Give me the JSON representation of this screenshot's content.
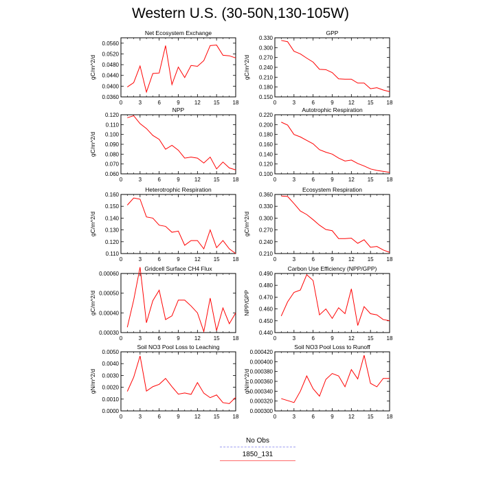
{
  "title": "Western U.S. (30-50N,130-105W)",
  "legend": {
    "items": [
      {
        "label": "No Obs",
        "color": "#9b9bf0",
        "style": "dashed"
      },
      {
        "label": "1850_131",
        "color": "#ff6a6a",
        "style": "solid"
      }
    ]
  },
  "chart_data": [
    {
      "type": "line",
      "title": "Net Ecosystem Exchange",
      "ylabel": "gC/m^2/d",
      "xlim": [
        0,
        18
      ],
      "ylim": [
        0.036,
        0.058
      ],
      "xticks": [
        0,
        3,
        6,
        9,
        12,
        15,
        18
      ],
      "yticks": [
        0.036,
        0.04,
        0.044,
        0.048,
        0.052,
        0.056
      ],
      "ytick_labels": [
        "0.0360",
        "0.0400",
        "0.0440",
        "0.0480",
        "0.0520",
        "0.0560"
      ],
      "series": [
        {
          "color": "#ff0000",
          "x": [
            1,
            2,
            3,
            4,
            5,
            6,
            7,
            8,
            9,
            10,
            11,
            12,
            13,
            14,
            15,
            16,
            17,
            18
          ],
          "y": [
            0.0397,
            0.0413,
            0.0475,
            0.0378,
            0.0447,
            0.0449,
            0.0551,
            0.0406,
            0.0471,
            0.0432,
            0.0477,
            0.0474,
            0.0495,
            0.0551,
            0.0553,
            0.0515,
            0.0513,
            0.0505
          ]
        }
      ]
    },
    {
      "type": "line",
      "title": "GPP",
      "ylabel": "gC/m^2/d",
      "xlim": [
        0,
        18
      ],
      "ylim": [
        0.15,
        0.33
      ],
      "xticks": [
        0,
        3,
        6,
        9,
        12,
        15,
        18
      ],
      "yticks": [
        0.15,
        0.18,
        0.21,
        0.24,
        0.27,
        0.3,
        0.33
      ],
      "ytick_labels": [
        "0.150",
        "0.180",
        "0.210",
        "0.240",
        "0.270",
        "0.300",
        "0.330"
      ],
      "series": [
        {
          "color": "#ff0000",
          "x": [
            1,
            2,
            3,
            4,
            5,
            6,
            7,
            8,
            9,
            10,
            11,
            12,
            13,
            14,
            15,
            16,
            17,
            18
          ],
          "y": [
            0.322,
            0.318,
            0.289,
            0.281,
            0.268,
            0.256,
            0.234,
            0.233,
            0.224,
            0.205,
            0.204,
            0.204,
            0.192,
            0.192,
            0.175,
            0.178,
            0.171,
            0.166
          ]
        }
      ]
    },
    {
      "type": "line",
      "title": "NPP",
      "ylabel": "gC/m^2/d",
      "xlim": [
        0,
        18
      ],
      "ylim": [
        0.06,
        0.12
      ],
      "xticks": [
        0,
        3,
        6,
        9,
        12,
        15,
        18
      ],
      "yticks": [
        0.06,
        0.07,
        0.08,
        0.09,
        0.1,
        0.11,
        0.12
      ],
      "ytick_labels": [
        "0.060",
        "0.070",
        "0.080",
        "0.090",
        "0.100",
        "0.110",
        "0.120"
      ],
      "series": [
        {
          "color": "#ff0000",
          "x": [
            1,
            2,
            3,
            4,
            5,
            6,
            7,
            8,
            9,
            10,
            11,
            12,
            13,
            14,
            15,
            16,
            17,
            18
          ],
          "y": [
            0.117,
            0.119,
            0.111,
            0.106,
            0.099,
            0.095,
            0.085,
            0.089,
            0.084,
            0.076,
            0.077,
            0.076,
            0.071,
            0.077,
            0.065,
            0.072,
            0.066,
            0.064
          ]
        }
      ]
    },
    {
      "type": "line",
      "title": "Autotrophic Respiration",
      "ylabel": "",
      "xlim": [
        0,
        18
      ],
      "ylim": [
        0.1,
        0.22
      ],
      "xticks": [
        0,
        3,
        6,
        9,
        12,
        15,
        18
      ],
      "yticks": [
        0.1,
        0.12,
        0.14,
        0.16,
        0.18,
        0.2,
        0.22
      ],
      "ytick_labels": [
        "0.100",
        "0.120",
        "0.140",
        "0.160",
        "0.180",
        "0.200",
        "0.220"
      ],
      "series": [
        {
          "color": "#ff0000",
          "x": [
            1,
            2,
            3,
            4,
            5,
            6,
            7,
            8,
            9,
            10,
            11,
            12,
            13,
            14,
            15,
            16,
            17,
            18
          ],
          "y": [
            0.205,
            0.199,
            0.18,
            0.175,
            0.168,
            0.161,
            0.149,
            0.144,
            0.14,
            0.132,
            0.126,
            0.128,
            0.121,
            0.116,
            0.11,
            0.107,
            0.105,
            0.103
          ]
        }
      ]
    },
    {
      "type": "line",
      "title": "Heterotrophic Respiration",
      "ylabel": "gC/m^2/d",
      "xlim": [
        0,
        18
      ],
      "ylim": [
        0.11,
        0.16
      ],
      "xticks": [
        0,
        3,
        6,
        9,
        12,
        15,
        18
      ],
      "yticks": [
        0.11,
        0.12,
        0.13,
        0.14,
        0.15,
        0.16
      ],
      "ytick_labels": [
        "0.110",
        "0.120",
        "0.130",
        "0.140",
        "0.150",
        "0.160"
      ],
      "series": [
        {
          "color": "#ff0000",
          "x": [
            1,
            2,
            3,
            4,
            5,
            6,
            7,
            8,
            9,
            10,
            11,
            12,
            13,
            14,
            15,
            16,
            17,
            18
          ],
          "y": [
            0.151,
            0.157,
            0.156,
            0.141,
            0.14,
            0.134,
            0.133,
            0.128,
            0.129,
            0.117,
            0.121,
            0.121,
            0.114,
            0.13,
            0.115,
            0.121,
            0.114,
            0.11
          ]
        }
      ]
    },
    {
      "type": "line",
      "title": "Ecosystem Respiration",
      "ylabel": "gC/m^2/d",
      "xlim": [
        0,
        18
      ],
      "ylim": [
        0.21,
        0.36
      ],
      "xticks": [
        0,
        3,
        6,
        9,
        12,
        15,
        18
      ],
      "yticks": [
        0.21,
        0.24,
        0.27,
        0.3,
        0.33,
        0.36
      ],
      "ytick_labels": [
        "0.210",
        "0.240",
        "0.270",
        "0.300",
        "0.330",
        "0.360"
      ],
      "series": [
        {
          "color": "#ff0000",
          "x": [
            1,
            2,
            3,
            4,
            5,
            6,
            7,
            8,
            9,
            10,
            11,
            12,
            13,
            14,
            15,
            16,
            17,
            18
          ],
          "y": [
            0.356,
            0.355,
            0.337,
            0.318,
            0.309,
            0.296,
            0.282,
            0.271,
            0.268,
            0.248,
            0.248,
            0.249,
            0.236,
            0.245,
            0.226,
            0.228,
            0.219,
            0.213
          ]
        }
      ]
    },
    {
      "type": "line",
      "title": "Gridcell Surface CH4 Flux",
      "ylabel": "gC/m^2/d",
      "xlim": [
        0,
        18
      ],
      "ylim": [
        0.0003,
        0.0006
      ],
      "xticks": [
        0,
        3,
        6,
        9,
        12,
        15,
        18
      ],
      "yticks": [
        0.0003,
        0.0004,
        0.0005,
        0.0006
      ],
      "ytick_labels": [
        "0.00030",
        "0.00040",
        "0.00050",
        "0.00060"
      ],
      "series": [
        {
          "color": "#ff0000",
          "x": [
            1,
            2,
            3,
            4,
            5,
            6,
            7,
            8,
            9,
            10,
            11,
            12,
            13,
            14,
            15,
            16,
            17,
            18
          ],
          "y": [
            0.000327,
            0.000465,
            0.000632,
            0.00035,
            0.000462,
            0.000515,
            0.000366,
            0.000385,
            0.000465,
            0.000465,
            0.000435,
            0.0004,
            0.000305,
            0.000475,
            0.00031,
            0.000425,
            0.000345,
            0.0004
          ]
        }
      ]
    },
    {
      "type": "line",
      "title": "Carbon Use Efficiency (NPP/GPP)",
      "ylabel": "NPP/GPP",
      "xlim": [
        0,
        18
      ],
      "ylim": [
        0.44,
        0.49
      ],
      "xticks": [
        0,
        3,
        6,
        9,
        12,
        15,
        18
      ],
      "yticks": [
        0.44,
        0.45,
        0.46,
        0.47,
        0.48,
        0.49
      ],
      "ytick_labels": [
        "0.440",
        "0.450",
        "0.460",
        "0.470",
        "0.480",
        "0.490"
      ],
      "series": [
        {
          "color": "#ff0000",
          "x": [
            1,
            2,
            3,
            4,
            5,
            6,
            7,
            8,
            9,
            10,
            11,
            12,
            13,
            14,
            15,
            16,
            17,
            18
          ],
          "y": [
            0.454,
            0.466,
            0.474,
            0.476,
            0.489,
            0.484,
            0.455,
            0.46,
            0.452,
            0.461,
            0.456,
            0.477,
            0.446,
            0.462,
            0.456,
            0.455,
            0.451,
            0.45
          ]
        }
      ]
    },
    {
      "type": "line",
      "title": "Soil NO3 Pool Loss to Leaching",
      "ylabel": "gN/m^2/d",
      "xlim": [
        0,
        18
      ],
      "ylim": [
        0.0,
        0.005
      ],
      "xticks": [
        0,
        3,
        6,
        9,
        12,
        15,
        18
      ],
      "yticks": [
        0.0,
        0.001,
        0.002,
        0.003,
        0.004,
        0.005
      ],
      "ytick_labels": [
        "0.0000",
        "0.0010",
        "0.0020",
        "0.0030",
        "0.0040",
        "0.0050"
      ],
      "series": [
        {
          "color": "#ff0000",
          "x": [
            1,
            2,
            3,
            4,
            5,
            6,
            7,
            8,
            9,
            10,
            11,
            12,
            13,
            14,
            15,
            16,
            17,
            18
          ],
          "y": [
            0.00165,
            0.00285,
            0.00465,
            0.00168,
            0.00205,
            0.00225,
            0.00275,
            0.00205,
            0.00142,
            0.00152,
            0.0014,
            0.0024,
            0.0015,
            0.00112,
            0.00135,
            0.0007,
            0.00062,
            0.00115
          ]
        }
      ]
    },
    {
      "type": "line",
      "title": "Soil NO3 Pool Loss to Runoff",
      "ylabel": "gN/m^2/d",
      "xlim": [
        0,
        18
      ],
      "ylim": [
        0.0003,
        0.00042
      ],
      "xticks": [
        0,
        3,
        6,
        9,
        12,
        15,
        18
      ],
      "yticks": [
        0.0003,
        0.00032,
        0.00034,
        0.00036,
        0.00038,
        0.0004,
        0.00042
      ],
      "ytick_labels": [
        "0.000300",
        "0.000320",
        "0.000340",
        "0.000360",
        "0.000380",
        "0.000400",
        "0.000420"
      ],
      "series": [
        {
          "color": "#ff0000",
          "x": [
            1,
            2,
            3,
            4,
            5,
            6,
            7,
            8,
            9,
            10,
            11,
            12,
            13,
            14,
            15,
            16,
            17,
            18
          ],
          "y": [
            0.000325,
            0.000321,
            0.000317,
            0.00034,
            0.000371,
            0.000345,
            0.00033,
            0.000364,
            0.000376,
            0.000371,
            0.000349,
            0.000384,
            0.000365,
            0.000413,
            0.000356,
            0.000349,
            0.000366,
            0.000366
          ]
        }
      ]
    }
  ]
}
